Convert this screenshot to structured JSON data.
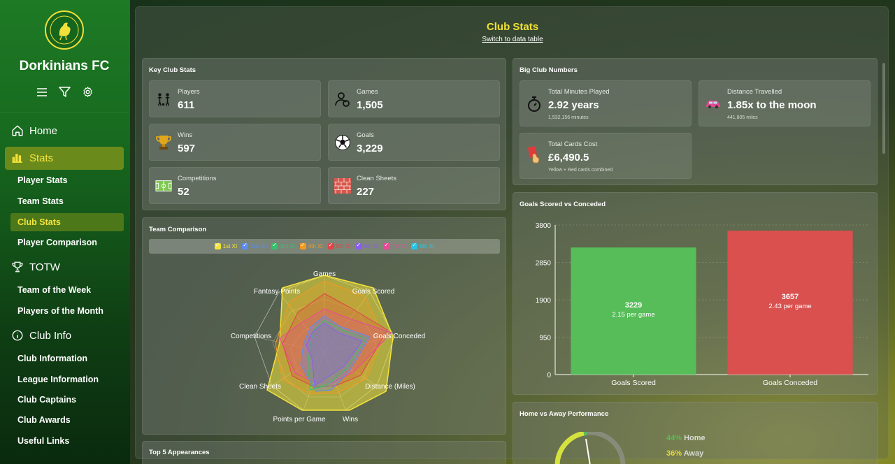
{
  "sidebar": {
    "club_name": "Dorkinians FC",
    "nav": {
      "home": "Home",
      "stats": "Stats",
      "stats_items": [
        "Player Stats",
        "Team Stats",
        "Club Stats",
        "Player Comparison"
      ],
      "totw": "TOTW",
      "totw_items": [
        "Team of the Week",
        "Players of the Month"
      ],
      "club_info": "Club Info",
      "club_info_items": [
        "Club Information",
        "League Information",
        "Club Captains",
        "Club Awards",
        "Useful Links"
      ]
    }
  },
  "header": {
    "title": "Club Stats",
    "switch_link": "Switch to data table"
  },
  "key_stats": {
    "title": "Key Club Stats",
    "items": [
      {
        "label": "Players",
        "value": "611",
        "icon": "players-icon"
      },
      {
        "label": "Games",
        "value": "1,505",
        "icon": "games-icon"
      },
      {
        "label": "Wins",
        "value": "597",
        "icon": "trophy-icon"
      },
      {
        "label": "Goals",
        "value": "3,229",
        "icon": "football-icon"
      },
      {
        "label": "Competitions",
        "value": "52",
        "icon": "pitch-icon"
      },
      {
        "label": "Clean Sheets",
        "value": "227",
        "icon": "brick-wall-icon"
      }
    ]
  },
  "big_numbers": {
    "title": "Big Club Numbers",
    "items": [
      {
        "label": "Total Minutes Played",
        "value": "2.92 years",
        "sub": "1,532,156 minutes",
        "icon": "stopwatch-icon"
      },
      {
        "label": "Distance Travelled",
        "value": "1.85x to the moon",
        "sub": "441,805 miles",
        "icon": "car-icon"
      },
      {
        "label": "Total Cards Cost",
        "value": "£6,490.5",
        "sub": "Yellow + Red cards combined",
        "icon": "cards-icon"
      }
    ]
  },
  "team_comparison": {
    "title": "Team Comparison",
    "legend": [
      {
        "name": "1st XI",
        "color": "#f3e43b"
      },
      {
        "name": "2nd XI",
        "color": "#5b8cf0"
      },
      {
        "name": "3rd XI",
        "color": "#37c06b"
      },
      {
        "name": "4th XI",
        "color": "#f39a1e"
      },
      {
        "name": "5th XI",
        "color": "#e04545"
      },
      {
        "name": "6th XI",
        "color": "#8b5cf6"
      },
      {
        "name": "7th XI",
        "color": "#ec4899"
      },
      {
        "name": "8th XI",
        "color": "#22c5e6"
      }
    ],
    "axes": [
      "Games",
      "Goals Scored",
      "Goals Conceded",
      "Distance (Miles)",
      "Wins",
      "Points per Game",
      "Clean Sheets",
      "Competitions",
      "Fantasy Points"
    ]
  },
  "chart_data": {
    "type": "bar",
    "title": "Goals Scored vs Conceded",
    "categories": [
      "Goals Scored",
      "Goals Conceded"
    ],
    "values": [
      3229,
      3657
    ],
    "labels": [
      "2.15 per game",
      "2.43 per game"
    ],
    "colors": [
      "#56bd58",
      "#d9504f"
    ],
    "ylim": [
      0,
      3800
    ],
    "yticks": [
      "0",
      "950",
      "1900",
      "2850",
      "3800"
    ],
    "grid": true
  },
  "top_appearances": {
    "title": "Top 5 Appearances"
  },
  "home_away": {
    "title": "Home vs Away Performance",
    "home_pct": "44%",
    "home_label": "Home",
    "away_pct": "36%",
    "away_label": "Away"
  }
}
